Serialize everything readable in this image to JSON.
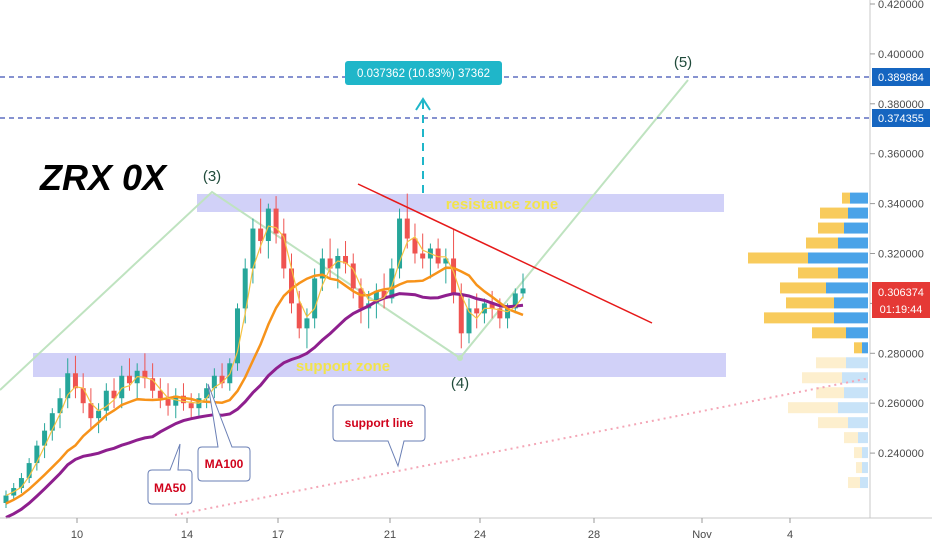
{
  "chart_data": {
    "type": "candlestick",
    "title": "ZRX 0X",
    "price_axis": {
      "ticks": [
        "0.420000",
        "0.400000",
        "0.380000",
        "0.360000",
        "0.340000",
        "0.320000",
        "0.300000",
        "0.280000",
        "0.260000",
        "0.240000"
      ],
      "range": [
        0.218,
        0.425
      ]
    },
    "time_axis": {
      "ticks": [
        "10",
        "14",
        "17",
        "21",
        "24",
        "28",
        "Nov",
        "4"
      ]
    },
    "price_tags": {
      "target1": "0.389884",
      "target2": "0.374355",
      "last_price": "0.306374",
      "countdown": "01:19:44"
    },
    "measure_label": "0.037362 (10.83%) 37362",
    "zones": {
      "resistance": {
        "label": "resistance zone",
        "range": [
          0.338,
          0.344
        ]
      },
      "support": {
        "label": "support zone",
        "range": [
          0.272,
          0.28
        ]
      }
    },
    "waves": [
      "(3)",
      "(4)",
      "(5)"
    ],
    "callouts": {
      "ma50": "MA50",
      "ma100": "MA100",
      "support_line": "support line"
    },
    "colors": {
      "up": "#26a69a",
      "down": "#ef5350",
      "ma50": "#f7931a",
      "ma100": "#8e1f8e",
      "ma_fast": "#f5c242",
      "zone": "#c9c9f7",
      "resistance_line": "#e61919",
      "wave_line": "#bfe3c0",
      "tag_blue": "#1565c0",
      "tag_red": "#e53935",
      "measure": "#1fb6c9",
      "vp_yellow": "#f8cb5c",
      "vp_blue": "#4aa3e8"
    },
    "candles": [
      [
        0.22,
        0.225,
        0.218,
        0.223
      ],
      [
        0.223,
        0.228,
        0.221,
        0.226
      ],
      [
        0.226,
        0.232,
        0.224,
        0.23
      ],
      [
        0.23,
        0.238,
        0.228,
        0.236
      ],
      [
        0.236,
        0.245,
        0.233,
        0.243
      ],
      [
        0.243,
        0.252,
        0.238,
        0.249
      ],
      [
        0.249,
        0.258,
        0.245,
        0.256
      ],
      [
        0.256,
        0.266,
        0.25,
        0.262
      ],
      [
        0.262,
        0.278,
        0.258,
        0.272
      ],
      [
        0.272,
        0.279,
        0.262,
        0.266
      ],
      [
        0.266,
        0.272,
        0.256,
        0.26
      ],
      [
        0.26,
        0.266,
        0.25,
        0.254
      ],
      [
        0.254,
        0.26,
        0.248,
        0.257
      ],
      [
        0.257,
        0.268,
        0.253,
        0.265
      ],
      [
        0.265,
        0.27,
        0.258,
        0.262
      ],
      [
        0.262,
        0.275,
        0.258,
        0.271
      ],
      [
        0.271,
        0.278,
        0.265,
        0.268
      ],
      [
        0.268,
        0.276,
        0.262,
        0.273
      ],
      [
        0.273,
        0.28,
        0.266,
        0.27
      ],
      [
        0.27,
        0.276,
        0.262,
        0.265
      ],
      [
        0.265,
        0.27,
        0.258,
        0.262
      ],
      [
        0.262,
        0.268,
        0.255,
        0.259
      ],
      [
        0.259,
        0.266,
        0.254,
        0.263
      ],
      [
        0.263,
        0.268,
        0.257,
        0.26
      ],
      [
        0.26,
        0.264,
        0.254,
        0.258
      ],
      [
        0.258,
        0.264,
        0.255,
        0.262
      ],
      [
        0.262,
        0.268,
        0.258,
        0.266
      ],
      [
        0.266,
        0.274,
        0.262,
        0.271
      ],
      [
        0.271,
        0.276,
        0.266,
        0.268
      ],
      [
        0.268,
        0.278,
        0.265,
        0.276
      ],
      [
        0.276,
        0.3,
        0.273,
        0.298
      ],
      [
        0.298,
        0.318,
        0.292,
        0.314
      ],
      [
        0.314,
        0.334,
        0.308,
        0.33
      ],
      [
        0.33,
        0.342,
        0.32,
        0.325
      ],
      [
        0.325,
        0.34,
        0.318,
        0.338
      ],
      [
        0.338,
        0.343,
        0.324,
        0.328
      ],
      [
        0.328,
        0.334,
        0.31,
        0.314
      ],
      [
        0.314,
        0.32,
        0.296,
        0.3
      ],
      [
        0.3,
        0.305,
        0.286,
        0.29
      ],
      [
        0.29,
        0.298,
        0.282,
        0.294
      ],
      [
        0.294,
        0.314,
        0.29,
        0.31
      ],
      [
        0.31,
        0.322,
        0.305,
        0.318
      ],
      [
        0.318,
        0.326,
        0.31,
        0.314
      ],
      [
        0.314,
        0.322,
        0.306,
        0.319
      ],
      [
        0.319,
        0.325,
        0.312,
        0.316
      ],
      [
        0.316,
        0.32,
        0.302,
        0.306
      ],
      [
        0.306,
        0.31,
        0.292,
        0.298
      ],
      [
        0.298,
        0.305,
        0.29,
        0.3
      ],
      [
        0.3,
        0.308,
        0.294,
        0.305
      ],
      [
        0.305,
        0.312,
        0.298,
        0.302
      ],
      [
        0.302,
        0.318,
        0.3,
        0.314
      ],
      [
        0.314,
        0.338,
        0.31,
        0.334
      ],
      [
        0.334,
        0.344,
        0.322,
        0.326
      ],
      [
        0.326,
        0.332,
        0.316,
        0.32
      ],
      [
        0.32,
        0.328,
        0.314,
        0.318
      ],
      [
        0.318,
        0.324,
        0.31,
        0.322
      ],
      [
        0.322,
        0.326,
        0.314,
        0.316
      ],
      [
        0.316,
        0.322,
        0.308,
        0.318
      ],
      [
        0.318,
        0.33,
        0.3,
        0.304
      ],
      [
        0.304,
        0.308,
        0.282,
        0.288
      ],
      [
        0.288,
        0.302,
        0.284,
        0.298
      ],
      [
        0.298,
        0.304,
        0.29,
        0.296
      ],
      [
        0.296,
        0.302,
        0.292,
        0.3
      ],
      [
        0.3,
        0.305,
        0.294,
        0.298
      ],
      [
        0.298,
        0.302,
        0.29,
        0.294
      ],
      [
        0.294,
        0.3,
        0.29,
        0.298
      ],
      [
        0.298,
        0.306,
        0.296,
        0.304
      ],
      [
        0.304,
        0.312,
        0.302,
        0.306
      ]
    ]
  }
}
